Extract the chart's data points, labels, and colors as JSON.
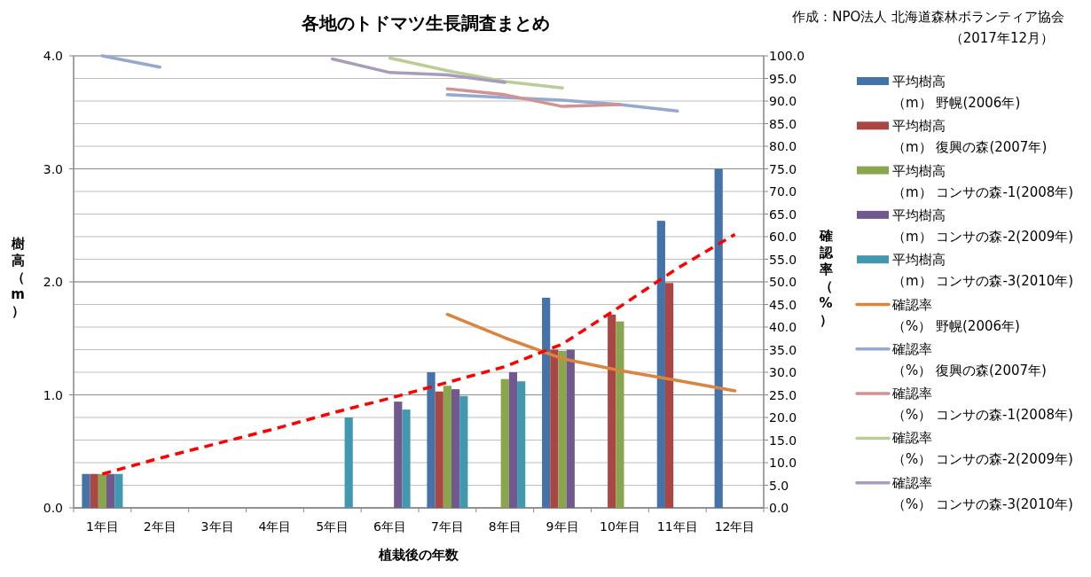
{
  "chart_data": {
    "type": "bar",
    "title": "各地のトドマツ生長調査まとめ",
    "annotations": [
      "作成：NPO法人 北海道森林ボランティア協会（2017年12月）"
    ],
    "xlabel": "植栽後の年数",
    "ylabel": "樹高（m）",
    "y2label": "確認率（%）",
    "categories": [
      "1年目",
      "2年目",
      "3年目",
      "4年目",
      "5年目",
      "6年目",
      "7年目",
      "8年目",
      "9年目",
      "10年目",
      "11年目",
      "12年目"
    ],
    "ylim": [
      0,
      4
    ],
    "yticks": [
      {
        "value": 0,
        "label": "0.0"
      },
      {
        "value": 1,
        "label": "1.0"
      },
      {
        "value": 2,
        "label": "2.0"
      },
      {
        "value": 3,
        "label": "3.0"
      },
      {
        "value": 4,
        "label": "4.0"
      }
    ],
    "y2lim": [
      0,
      100
    ],
    "y2ticks": [
      {
        "value": 0,
        "label": "0.0"
      },
      {
        "value": 5,
        "label": "5.0"
      },
      {
        "value": 10,
        "label": "10.0"
      },
      {
        "value": 15,
        "label": "15.0"
      },
      {
        "value": 20,
        "label": "20.0"
      },
      {
        "value": 25,
        "label": "25.0"
      },
      {
        "value": 30,
        "label": "30.0"
      },
      {
        "value": 35,
        "label": "35.0"
      },
      {
        "value": 40,
        "label": "40.0"
      },
      {
        "value": 45,
        "label": "45.0"
      },
      {
        "value": 50,
        "label": "50.0"
      },
      {
        "value": 55,
        "label": "55.0"
      },
      {
        "value": 60,
        "label": "60.0"
      },
      {
        "value": 65,
        "label": "65.0"
      },
      {
        "value": 70,
        "label": "70.0"
      },
      {
        "value": 75,
        "label": "75.0"
      },
      {
        "value": 80,
        "label": "80.0"
      },
      {
        "value": 85,
        "label": "85.0"
      },
      {
        "value": 90,
        "label": "90.0"
      },
      {
        "value": 95,
        "label": "95.0"
      },
      {
        "value": 100,
        "label": "100.0"
      }
    ],
    "grid": true,
    "legend": "right",
    "series": [
      {
        "name": "平均樹高（m） 野幌(2006年)",
        "color": "#4572a7",
        "values": [
          0.3,
          null,
          null,
          null,
          null,
          null,
          1.2,
          null,
          1.86,
          null,
          2.54,
          3.0
        ]
      },
      {
        "name": "平均樹高（m） 復興の森(2007年)",
        "color": "#aa4643",
        "values": [
          0.3,
          null,
          null,
          null,
          null,
          null,
          1.03,
          null,
          1.4,
          1.71,
          1.99,
          null
        ]
      },
      {
        "name": "平均樹高（m） コンサの森-1(2008年)",
        "color": "#89a54e",
        "values": [
          0.3,
          null,
          null,
          null,
          null,
          null,
          1.08,
          1.14,
          1.39,
          1.65,
          null,
          null
        ]
      },
      {
        "name": "平均樹高（m） コンサの森-2(2009年)",
        "color": "#71588f",
        "values": [
          0.3,
          null,
          null,
          null,
          null,
          0.94,
          1.05,
          1.2,
          1.4,
          null,
          null,
          null
        ]
      },
      {
        "name": "平均樹高（m） コンサの森-3(2010年)",
        "color": "#4198af",
        "values": [
          0.3,
          null,
          null,
          null,
          0.8,
          0.87,
          0.99,
          1.12,
          null,
          null,
          null,
          null
        ]
      },
      {
        "name": "確認率（%） 野幌(2006年)",
        "type": "line",
        "axis": "y2",
        "color": "#db843d",
        "values": [
          null,
          null,
          null,
          null,
          null,
          null,
          42.8,
          37.6,
          33.0,
          30.4,
          28.2,
          25.9
        ]
      },
      {
        "name": "確認率（%） 復興の森(2007年)",
        "type": "line",
        "axis": "y2",
        "color": "#93a9cf",
        "values": [
          100,
          97.5,
          null,
          null,
          null,
          null,
          91.4,
          90.8,
          90.2,
          89.2,
          87.8,
          null
        ]
      },
      {
        "name": "確認率（%） コンサの森-1(2008年)",
        "type": "line",
        "axis": "y2",
        "color": "#d19392",
        "values": [
          null,
          null,
          null,
          null,
          null,
          null,
          92.7,
          91.4,
          88.8,
          89.2,
          null,
          null
        ]
      },
      {
        "name": "確認率（%） コンサの森-2(2009年)",
        "type": "line",
        "axis": "y2",
        "color": "#b9cd96",
        "values": [
          null,
          null,
          null,
          null,
          null,
          99.5,
          96.7,
          94.3,
          92.9,
          null,
          null,
          null
        ]
      },
      {
        "name": "確認率（%） コンサの森-3(2010年)",
        "type": "line",
        "axis": "y2",
        "color": "#a99bbd",
        "values": [
          null,
          null,
          null,
          null,
          99.3,
          96.3,
          95.8,
          94.1,
          null,
          null,
          null,
          null
        ]
      },
      {
        "type": "line",
        "color": "#ff0000",
        "line_style": "dashed",
        "values": [
          0.3,
          0.44,
          0.57,
          0.7,
          0.84,
          0.97,
          1.11,
          1.25,
          1.45,
          1.78,
          2.12,
          2.42
        ]
      }
    ]
  }
}
